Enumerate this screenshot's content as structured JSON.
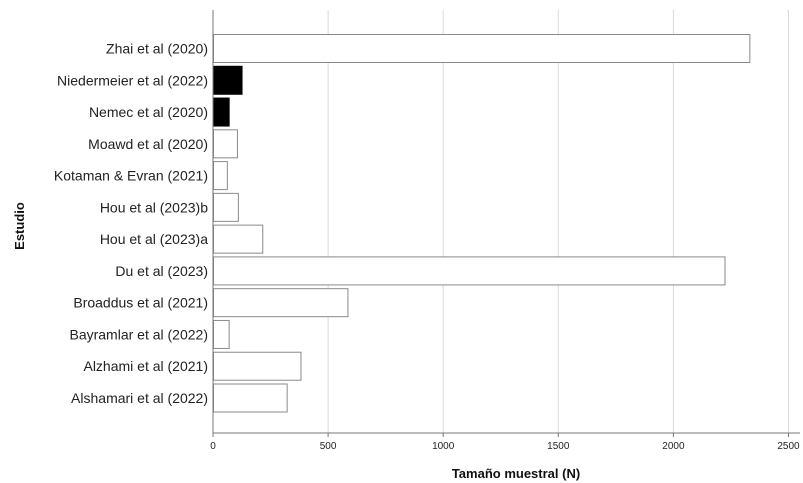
{
  "chart_data": {
    "type": "bar",
    "orientation": "horizontal",
    "xlabel": "Tamaño muestral (N)",
    "ylabel": "Estudio",
    "xlim": [
      0,
      2550
    ],
    "xticks": [
      0,
      500,
      1000,
      1500,
      2000,
      2500
    ],
    "grid": true,
    "categories": [
      "Zhai et al (2020)",
      "Niedermeier et al (2022)",
      "Nemec et al (2020)",
      "Moawd et al (2020)",
      "Kotaman & Evran (2021)",
      "Hou et al (2023)b",
      "Hou et al (2023)a",
      "Du et al (2023)",
      "Broaddus et al (2021)",
      "Bayramlar et al (2022)",
      "Alzhami et al (2021)",
      "Alshamari et al (2022)"
    ],
    "values": [
      2330,
      124,
      68,
      104,
      60,
      108,
      214,
      2222,
      584,
      68,
      380,
      320
    ],
    "bar_colors": [
      "#ffffff",
      "#000000",
      "#000000",
      "#ffffff",
      "#ffffff",
      "#ffffff",
      "#ffffff",
      "#ffffff",
      "#ffffff",
      "#ffffff",
      "#ffffff",
      "#ffffff"
    ]
  }
}
